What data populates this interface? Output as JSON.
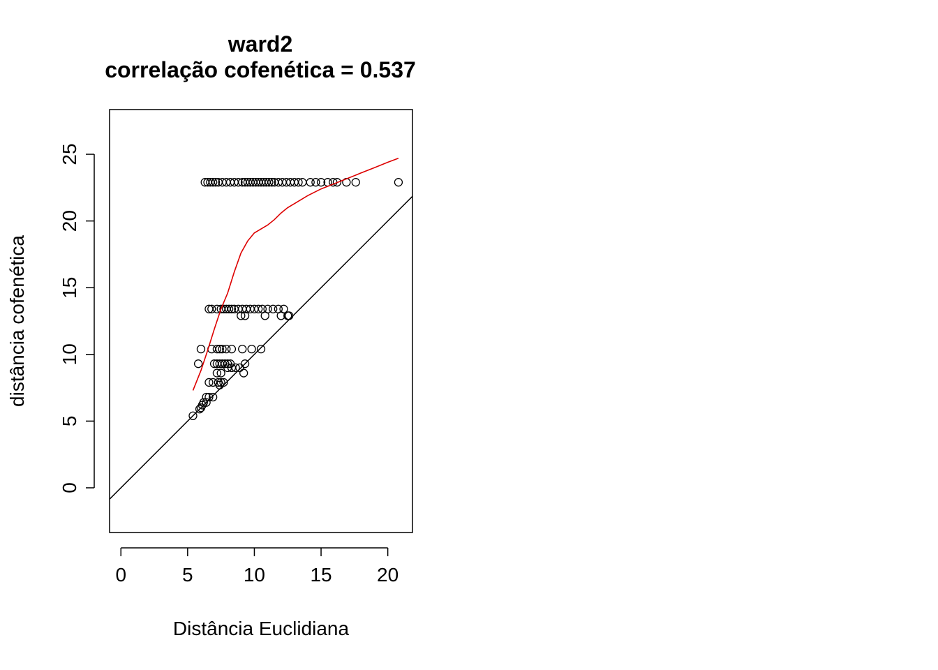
{
  "chart_data": {
    "type": "scatter",
    "title": "ward2",
    "subtitle": "correlação cofenética = 0.537",
    "xlabel": "Distância Euclidiana",
    "ylabel": "distância cofenética",
    "xlim": [
      -0.85,
      21.85
    ],
    "ylim": [
      -3.35,
      28.35
    ],
    "x_ticks": [
      0,
      5,
      10,
      15,
      20
    ],
    "y_ticks": [
      0,
      5,
      10,
      15,
      20,
      25
    ],
    "grid": false,
    "legend": "none",
    "colors": {
      "points": "#000000",
      "identity_line": "#000000",
      "smooth_line": "#dd0000"
    },
    "identity_line": {
      "slope": 1,
      "intercept": 0
    },
    "points": [
      [
        6.3,
        22.9
      ],
      [
        6.5,
        22.9
      ],
      [
        6.7,
        22.9
      ],
      [
        6.9,
        22.9
      ],
      [
        7.1,
        22.9
      ],
      [
        7.3,
        22.9
      ],
      [
        7.6,
        22.9
      ],
      [
        7.9,
        22.9
      ],
      [
        8.2,
        22.9
      ],
      [
        8.5,
        22.9
      ],
      [
        8.8,
        22.9
      ],
      [
        9.1,
        22.9
      ],
      [
        9.3,
        22.9
      ],
      [
        9.5,
        22.9
      ],
      [
        9.7,
        22.9
      ],
      [
        9.9,
        22.9
      ],
      [
        10.1,
        22.9
      ],
      [
        10.3,
        22.9
      ],
      [
        10.5,
        22.9
      ],
      [
        10.7,
        22.9
      ],
      [
        10.9,
        22.9
      ],
      [
        11.1,
        22.9
      ],
      [
        11.3,
        22.9
      ],
      [
        11.5,
        22.9
      ],
      [
        11.8,
        22.9
      ],
      [
        12.1,
        22.9
      ],
      [
        12.4,
        22.9
      ],
      [
        12.7,
        22.9
      ],
      [
        13.0,
        22.9
      ],
      [
        13.3,
        22.9
      ],
      [
        13.6,
        22.9
      ],
      [
        14.2,
        22.9
      ],
      [
        14.6,
        22.9
      ],
      [
        15.0,
        22.9
      ],
      [
        15.5,
        22.9
      ],
      [
        15.9,
        22.9
      ],
      [
        16.2,
        22.9
      ],
      [
        16.9,
        22.9
      ],
      [
        17.6,
        22.9
      ],
      [
        20.8,
        22.9
      ],
      [
        6.6,
        13.4
      ],
      [
        6.8,
        13.4
      ],
      [
        7.2,
        13.4
      ],
      [
        7.5,
        13.4
      ],
      [
        7.7,
        13.4
      ],
      [
        7.9,
        13.4
      ],
      [
        8.1,
        13.4
      ],
      [
        8.3,
        13.4
      ],
      [
        8.5,
        13.4
      ],
      [
        8.8,
        13.4
      ],
      [
        9.1,
        13.4
      ],
      [
        9.4,
        13.4
      ],
      [
        9.7,
        13.4
      ],
      [
        10.0,
        13.4
      ],
      [
        10.3,
        13.4
      ],
      [
        10.6,
        13.4
      ],
      [
        11.0,
        13.4
      ],
      [
        11.4,
        13.4
      ],
      [
        11.8,
        13.4
      ],
      [
        12.2,
        13.4
      ],
      [
        9.0,
        12.9
      ],
      [
        9.3,
        12.9
      ],
      [
        10.8,
        12.9
      ],
      [
        12.0,
        12.9
      ],
      [
        12.5,
        12.9
      ],
      [
        12.6,
        12.9
      ],
      [
        6.0,
        10.4
      ],
      [
        6.8,
        10.4
      ],
      [
        7.2,
        10.4
      ],
      [
        7.4,
        10.4
      ],
      [
        7.6,
        10.4
      ],
      [
        7.9,
        10.4
      ],
      [
        8.3,
        10.4
      ],
      [
        9.1,
        10.4
      ],
      [
        9.8,
        10.4
      ],
      [
        10.5,
        10.4
      ],
      [
        5.8,
        9.3
      ],
      [
        7.0,
        9.3
      ],
      [
        7.2,
        9.3
      ],
      [
        7.4,
        9.3
      ],
      [
        7.6,
        9.3
      ],
      [
        7.8,
        9.3
      ],
      [
        8.0,
        9.3
      ],
      [
        8.2,
        9.3
      ],
      [
        9.3,
        9.3
      ],
      [
        8.0,
        9.0
      ],
      [
        8.3,
        9.0
      ],
      [
        8.6,
        9.0
      ],
      [
        8.9,
        9.0
      ],
      [
        7.2,
        8.6
      ],
      [
        7.5,
        8.6
      ],
      [
        9.2,
        8.6
      ],
      [
        6.6,
        7.9
      ],
      [
        6.9,
        7.9
      ],
      [
        7.3,
        7.9
      ],
      [
        7.5,
        7.9
      ],
      [
        7.7,
        7.9
      ],
      [
        7.4,
        7.7
      ],
      [
        6.4,
        6.8
      ],
      [
        6.6,
        6.8
      ],
      [
        6.9,
        6.8
      ],
      [
        6.2,
        6.4
      ],
      [
        6.4,
        6.4
      ],
      [
        6.1,
        6.2
      ],
      [
        5.9,
        5.9
      ],
      [
        6.0,
        6.0
      ],
      [
        5.4,
        5.4
      ]
    ],
    "smooth_line": [
      [
        5.4,
        7.3
      ],
      [
        6.0,
        8.8
      ],
      [
        6.5,
        10.3
      ],
      [
        7.0,
        11.9
      ],
      [
        7.5,
        13.4
      ],
      [
        8.0,
        14.6
      ],
      [
        8.5,
        16.2
      ],
      [
        9.0,
        17.6
      ],
      [
        9.5,
        18.5
      ],
      [
        10.0,
        19.1
      ],
      [
        10.5,
        19.4
      ],
      [
        11.0,
        19.7
      ],
      [
        11.5,
        20.1
      ],
      [
        12.0,
        20.6
      ],
      [
        12.5,
        21.0
      ],
      [
        13.0,
        21.3
      ],
      [
        14.0,
        21.9
      ],
      [
        15.0,
        22.4
      ],
      [
        16.0,
        22.8
      ],
      [
        17.0,
        23.2
      ],
      [
        18.0,
        23.6
      ],
      [
        19.0,
        24.0
      ],
      [
        20.0,
        24.4
      ],
      [
        20.8,
        24.7
      ]
    ]
  }
}
